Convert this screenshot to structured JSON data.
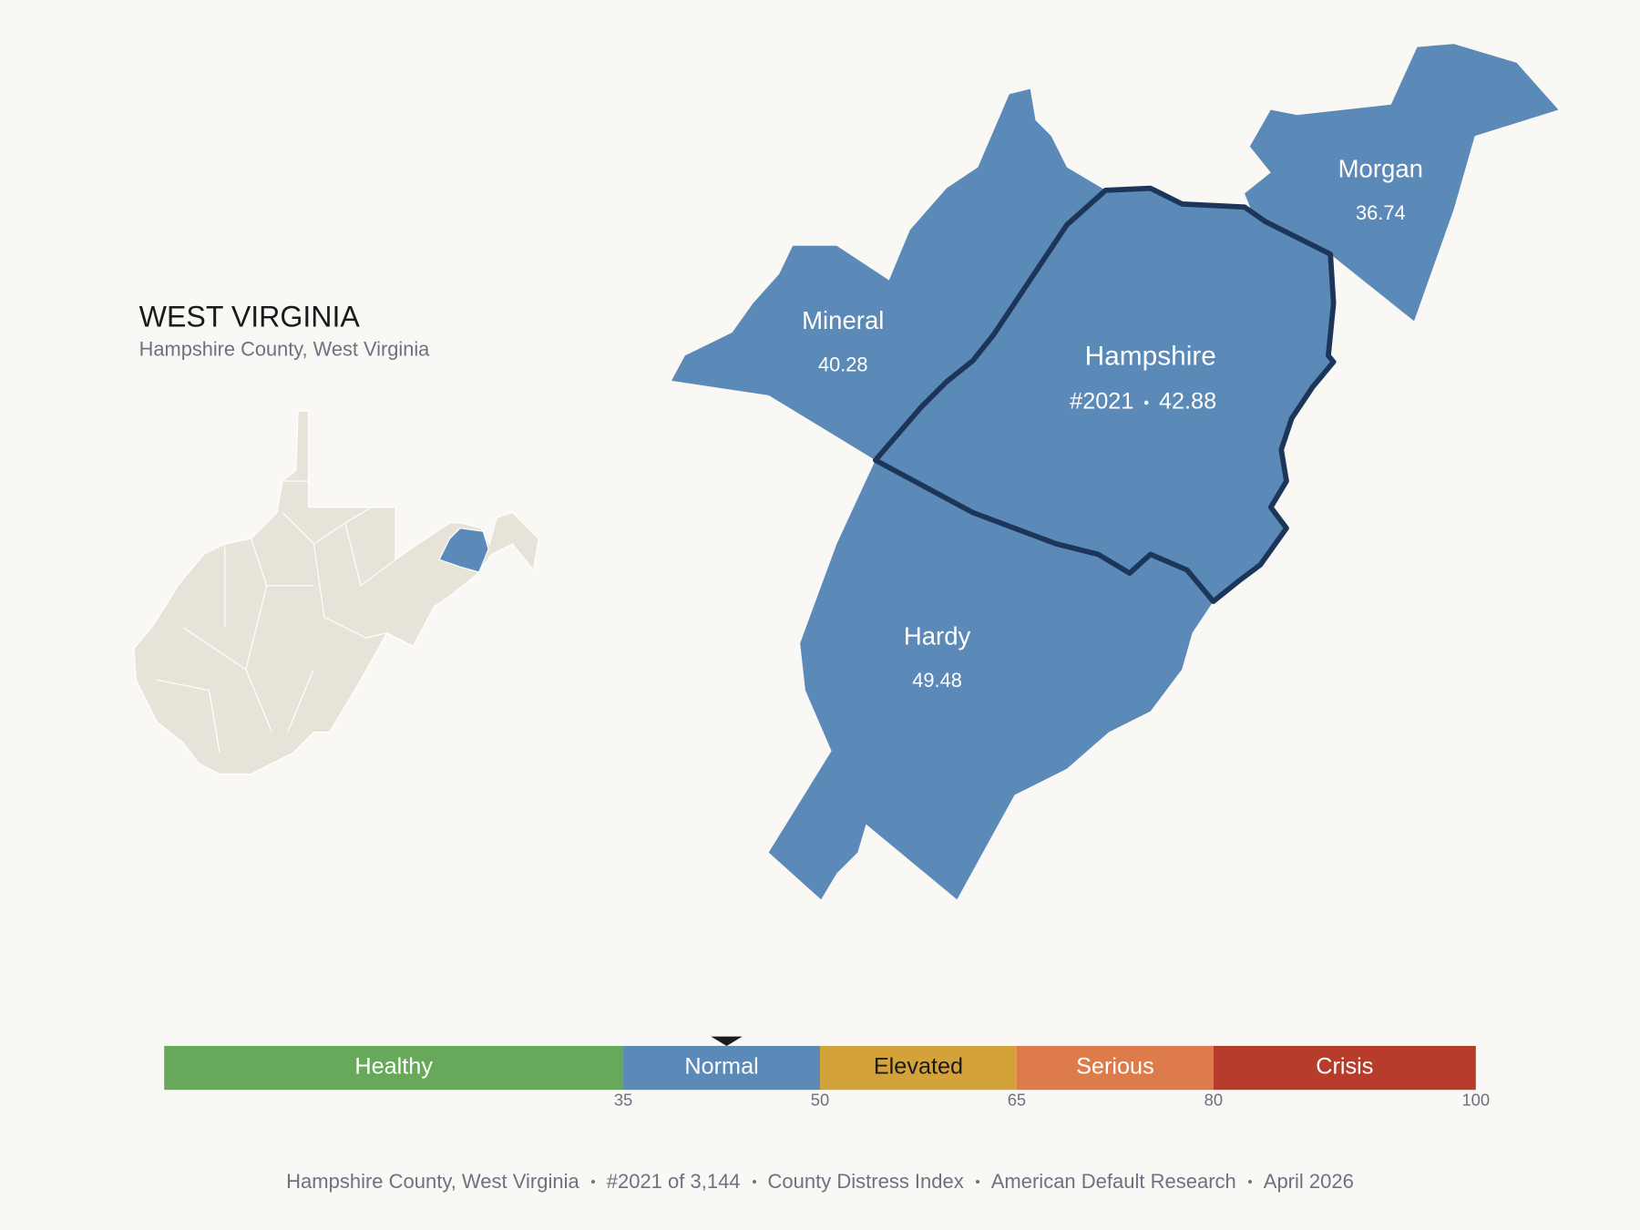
{
  "header": {
    "title": "WEST VIRGINIA",
    "subtitle": "Hampshire County, West Virginia"
  },
  "counties": [
    {
      "name": "Mineral",
      "value": 40.28
    },
    {
      "name": "Hampshire",
      "rank": "#2021",
      "value": 42.88,
      "selected": true
    },
    {
      "name": "Morgan",
      "value": 36.74
    },
    {
      "name": "Hardy",
      "value": 49.48
    }
  ],
  "scale": {
    "lim": [
      0,
      100
    ],
    "ticks": [
      35,
      50,
      65,
      80,
      100
    ],
    "bands": [
      {
        "name": "Healthy",
        "color": "#67a85a"
      },
      {
        "name": "Normal",
        "color": "#5b89b8"
      },
      {
        "name": "Elevated",
        "color": "#d4a23a"
      },
      {
        "name": "Serious",
        "color": "#de7b4a"
      },
      {
        "name": "Crisis",
        "color": "#b83c2c"
      }
    ]
  },
  "footer": [
    "Hampshire County, West Virginia",
    "#2021 of 3,144",
    "County Distress Index",
    "American Default Research",
    "April 2026"
  ]
}
